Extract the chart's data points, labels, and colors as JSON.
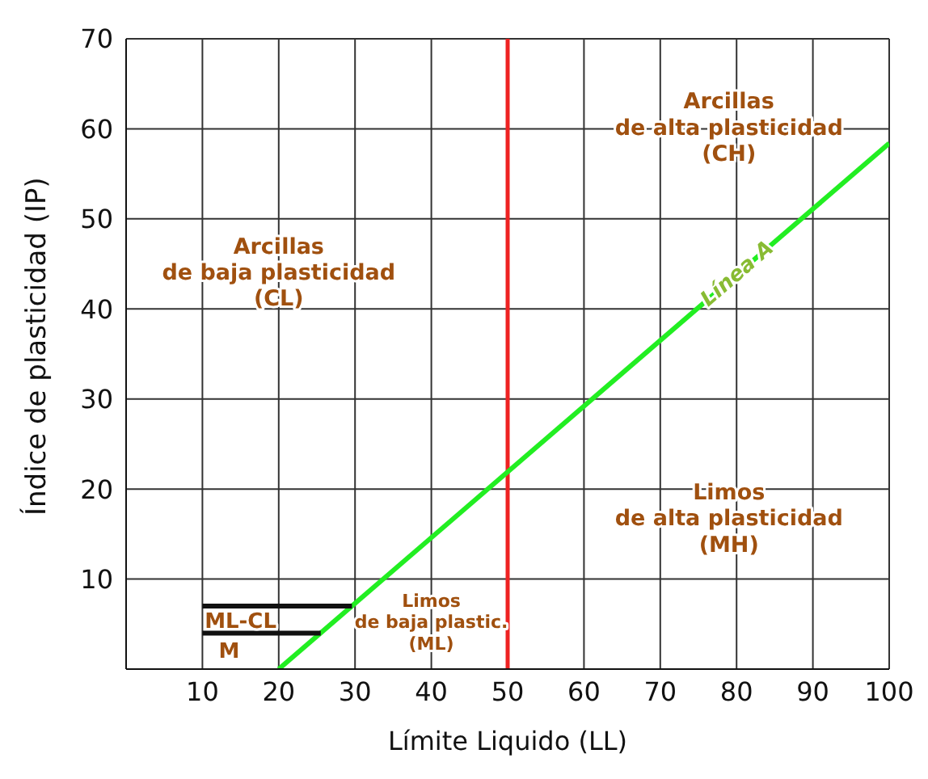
{
  "chart_data": {
    "type": "line",
    "xlabel": "Límite Liquido (LL)",
    "ylabel": "Índice de plasticidad (IP)",
    "xlim": [
      0,
      100
    ],
    "xticks": [
      10,
      20,
      30,
      40,
      50,
      60,
      70,
      80,
      90,
      100
    ],
    "ylim": [
      0,
      70
    ],
    "yticks": [
      10,
      20,
      30,
      40,
      50,
      60,
      70
    ],
    "grid": true,
    "legend": false,
    "marker": "none",
    "series": [
      {
        "color": "#22ee22",
        "x": [
          20,
          100
        ],
        "values": [
          0,
          58.4
        ]
      },
      {
        "color": "#111111",
        "x": [
          10,
          29.6
        ],
        "values": [
          7,
          7
        ]
      },
      {
        "color": "#111111",
        "x": [
          10,
          25.5
        ],
        "values": [
          4,
          4
        ]
      }
    ],
    "ref_lines": [
      {
        "axis": "x",
        "value": 50,
        "color": "#ee2222"
      }
    ],
    "annotations": [
      "Arcillas\nde alta plasticidad\n(CH)",
      "Arcillas\nde baja plasticidad\n(CL)",
      {
        "text": "Línea A",
        "x": 80,
        "y": 44
      },
      "Limos\nde alta plasticidad\n(MH)",
      "Limos\nde baja plastic.\n(ML)",
      "ML-CL",
      "M"
    ]
  }
}
